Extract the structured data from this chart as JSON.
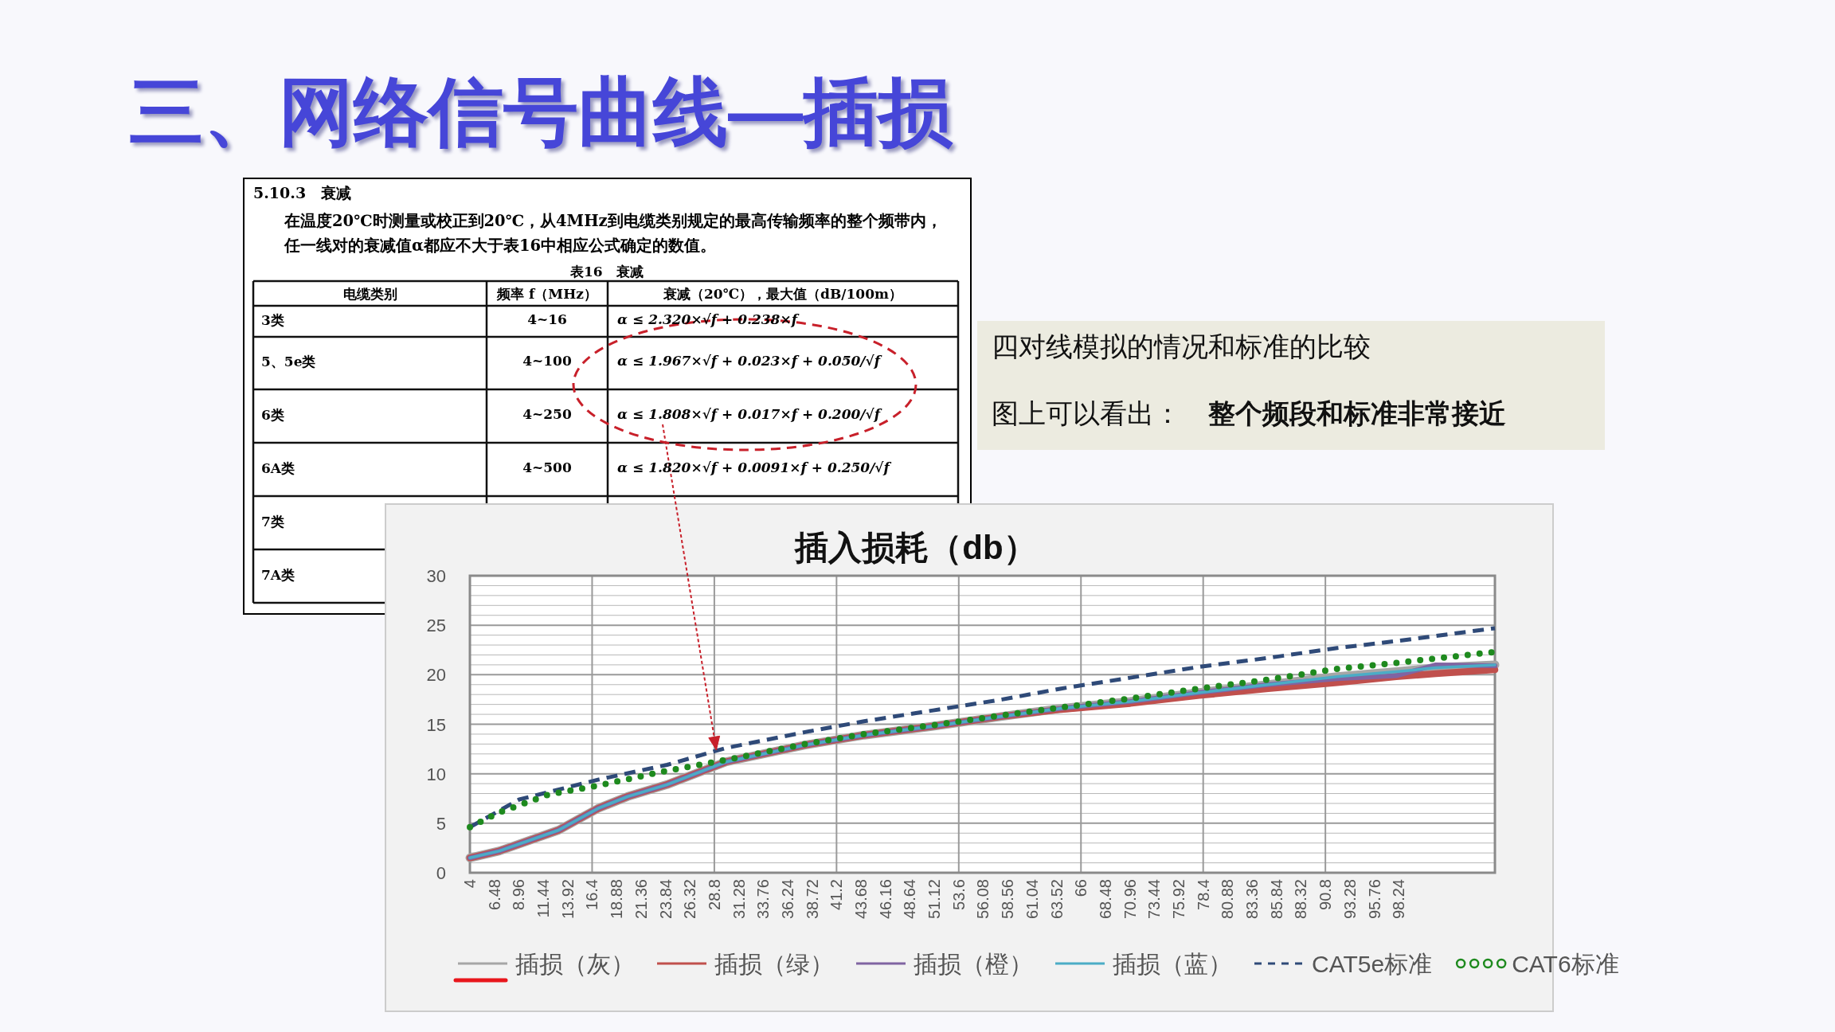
{
  "chart_data": {
    "type": "line",
    "title": "插入损耗（db）",
    "annotations": [
      "三、网络信号曲线—插损",
      "5.10.3　衰减",
      "在温度20℃时测量或校正到20℃，从4MHz到电缆类别规定的最高传输频率的整个频带内，任一线对的衰减值α都应不大于表16中相应公式确定的数值。",
      "表16　衰减",
      "电缆类别",
      "频率 f（MHz）",
      "衰减（20℃），最大值（dB/100m）",
      "3类",
      "4~16",
      "α ≤ 2.320×√f + 0.238×f",
      "5、5e类",
      "4~100",
      "α ≤ 1.967×√f + 0.023×f + 0.050/√f",
      "6类",
      "4~250",
      {
        "text": "α ≤ 1.808×√f + 0.017×f + 0.200/√f",
        "x": 29,
        "y": 12.4
      },
      "6A类",
      "4~500",
      "α ≤ 1.820×√f + 0.0091×f + 0.250/√f",
      "7类",
      "7A类",
      "四对线模拟的情况和标准的比较",
      "图上可以看出：　**整个频段和标准非常接近**"
    ],
    "xlim": [
      4,
      108
    ],
    "xticks": [
      4,
      6.48,
      8.96,
      11.44,
      13.92,
      16.4,
      18.88,
      21.36,
      23.84,
      26.32,
      28.8,
      31.28,
      33.76,
      36.24,
      38.72,
      41.2,
      43.68,
      46.16,
      48.64,
      51.12,
      53.6,
      56.08,
      58.56,
      61.04,
      63.52,
      66,
      68.48,
      70.96,
      73.44,
      75.92,
      78.4,
      80.88,
      83.36,
      85.84,
      88.32,
      90.8,
      93.28,
      95.76,
      98.24
    ],
    "ylim": [
      0,
      30
    ],
    "yticks": [
      0,
      5,
      10,
      15,
      20,
      25,
      30
    ],
    "grid": true,
    "legend": "bottom",
    "marker": "none",
    "series": [
      {
        "name": "插损（灰）",
        "color": "#a6a6a6",
        "line_style": "solid",
        "x": [
          4,
          7,
          9,
          13,
          17,
          20,
          24,
          30,
          38,
          44,
          51,
          58,
          64,
          71,
          78,
          85,
          92,
          98,
          102,
          108
        ],
        "values": [
          1.5,
          2.2,
          2.9,
          4.3,
          6.5,
          7.7,
          8.9,
          11.2,
          12.9,
          13.9,
          14.8,
          15.8,
          16.6,
          17.3,
          18.2,
          19.0,
          19.8,
          20.3,
          20.7,
          21.0
        ]
      },
      {
        "name": "插损（绿）",
        "color": "#c0504d",
        "line_style": "solid",
        "x": [
          4,
          7,
          9,
          13,
          17,
          20,
          24,
          30,
          38,
          44,
          51,
          58,
          64,
          71,
          78,
          85,
          92,
          98,
          102,
          108
        ],
        "values": [
          1.5,
          2.2,
          2.9,
          4.3,
          6.5,
          7.7,
          8.9,
          11.2,
          12.9,
          13.9,
          14.8,
          15.8,
          16.5,
          17.1,
          17.9,
          18.6,
          19.2,
          19.8,
          20.1,
          20.5
        ]
      },
      {
        "name": "插损（橙）",
        "color": "#8064a2",
        "line_style": "solid",
        "x": [
          4,
          7,
          9,
          13,
          17,
          20,
          24,
          30,
          38,
          44,
          51,
          58,
          64,
          71,
          78,
          85,
          92,
          98,
          102,
          108
        ],
        "values": [
          1.5,
          2.2,
          2.9,
          4.3,
          6.5,
          7.7,
          8.9,
          11.2,
          12.9,
          13.9,
          14.8,
          15.8,
          16.6,
          17.3,
          18.2,
          19.0,
          19.6,
          19.9,
          21.0,
          20.9
        ]
      },
      {
        "name": "插损（蓝）",
        "color": "#4bacc6",
        "line_style": "solid",
        "x": [
          4,
          7,
          9,
          13,
          17,
          20,
          24,
          30,
          38,
          44,
          51,
          58,
          64,
          71,
          78,
          85,
          92,
          98,
          102,
          108
        ],
        "values": [
          1.5,
          2.2,
          2.9,
          4.3,
          6.5,
          7.7,
          8.9,
          11.2,
          12.9,
          13.9,
          14.8,
          15.8,
          16.6,
          17.3,
          18.2,
          19.0,
          19.8,
          20.3,
          20.7,
          21.0
        ]
      },
      {
        "name": "CAT5e标准",
        "color": "#2f4a78",
        "line_style": "dashed",
        "x": [
          4,
          9,
          17,
          24,
          30,
          38,
          44,
          51,
          58,
          64,
          71,
          78,
          85,
          92,
          98,
          108
        ],
        "values": [
          4.6,
          7.4,
          9.4,
          10.9,
          12.6,
          14.2,
          15.3,
          16.4,
          17.5,
          18.6,
          19.7,
          20.8,
          21.7,
          22.7,
          23.4,
          24.7
        ]
      },
      {
        "name": "CAT6标准",
        "color": "#1e8a1e",
        "line_style": "dotted",
        "x": [
          4,
          7,
          12,
          17,
          24,
          30,
          38,
          44,
          51,
          58,
          64,
          71,
          78,
          85,
          92,
          98,
          108
        ],
        "values": [
          4.6,
          6.1,
          7.9,
          8.8,
          10.3,
          11.4,
          13.0,
          14.0,
          14.9,
          15.9,
          16.7,
          17.6,
          18.6,
          19.5,
          20.6,
          21.2,
          22.3
        ]
      }
    ]
  }
}
